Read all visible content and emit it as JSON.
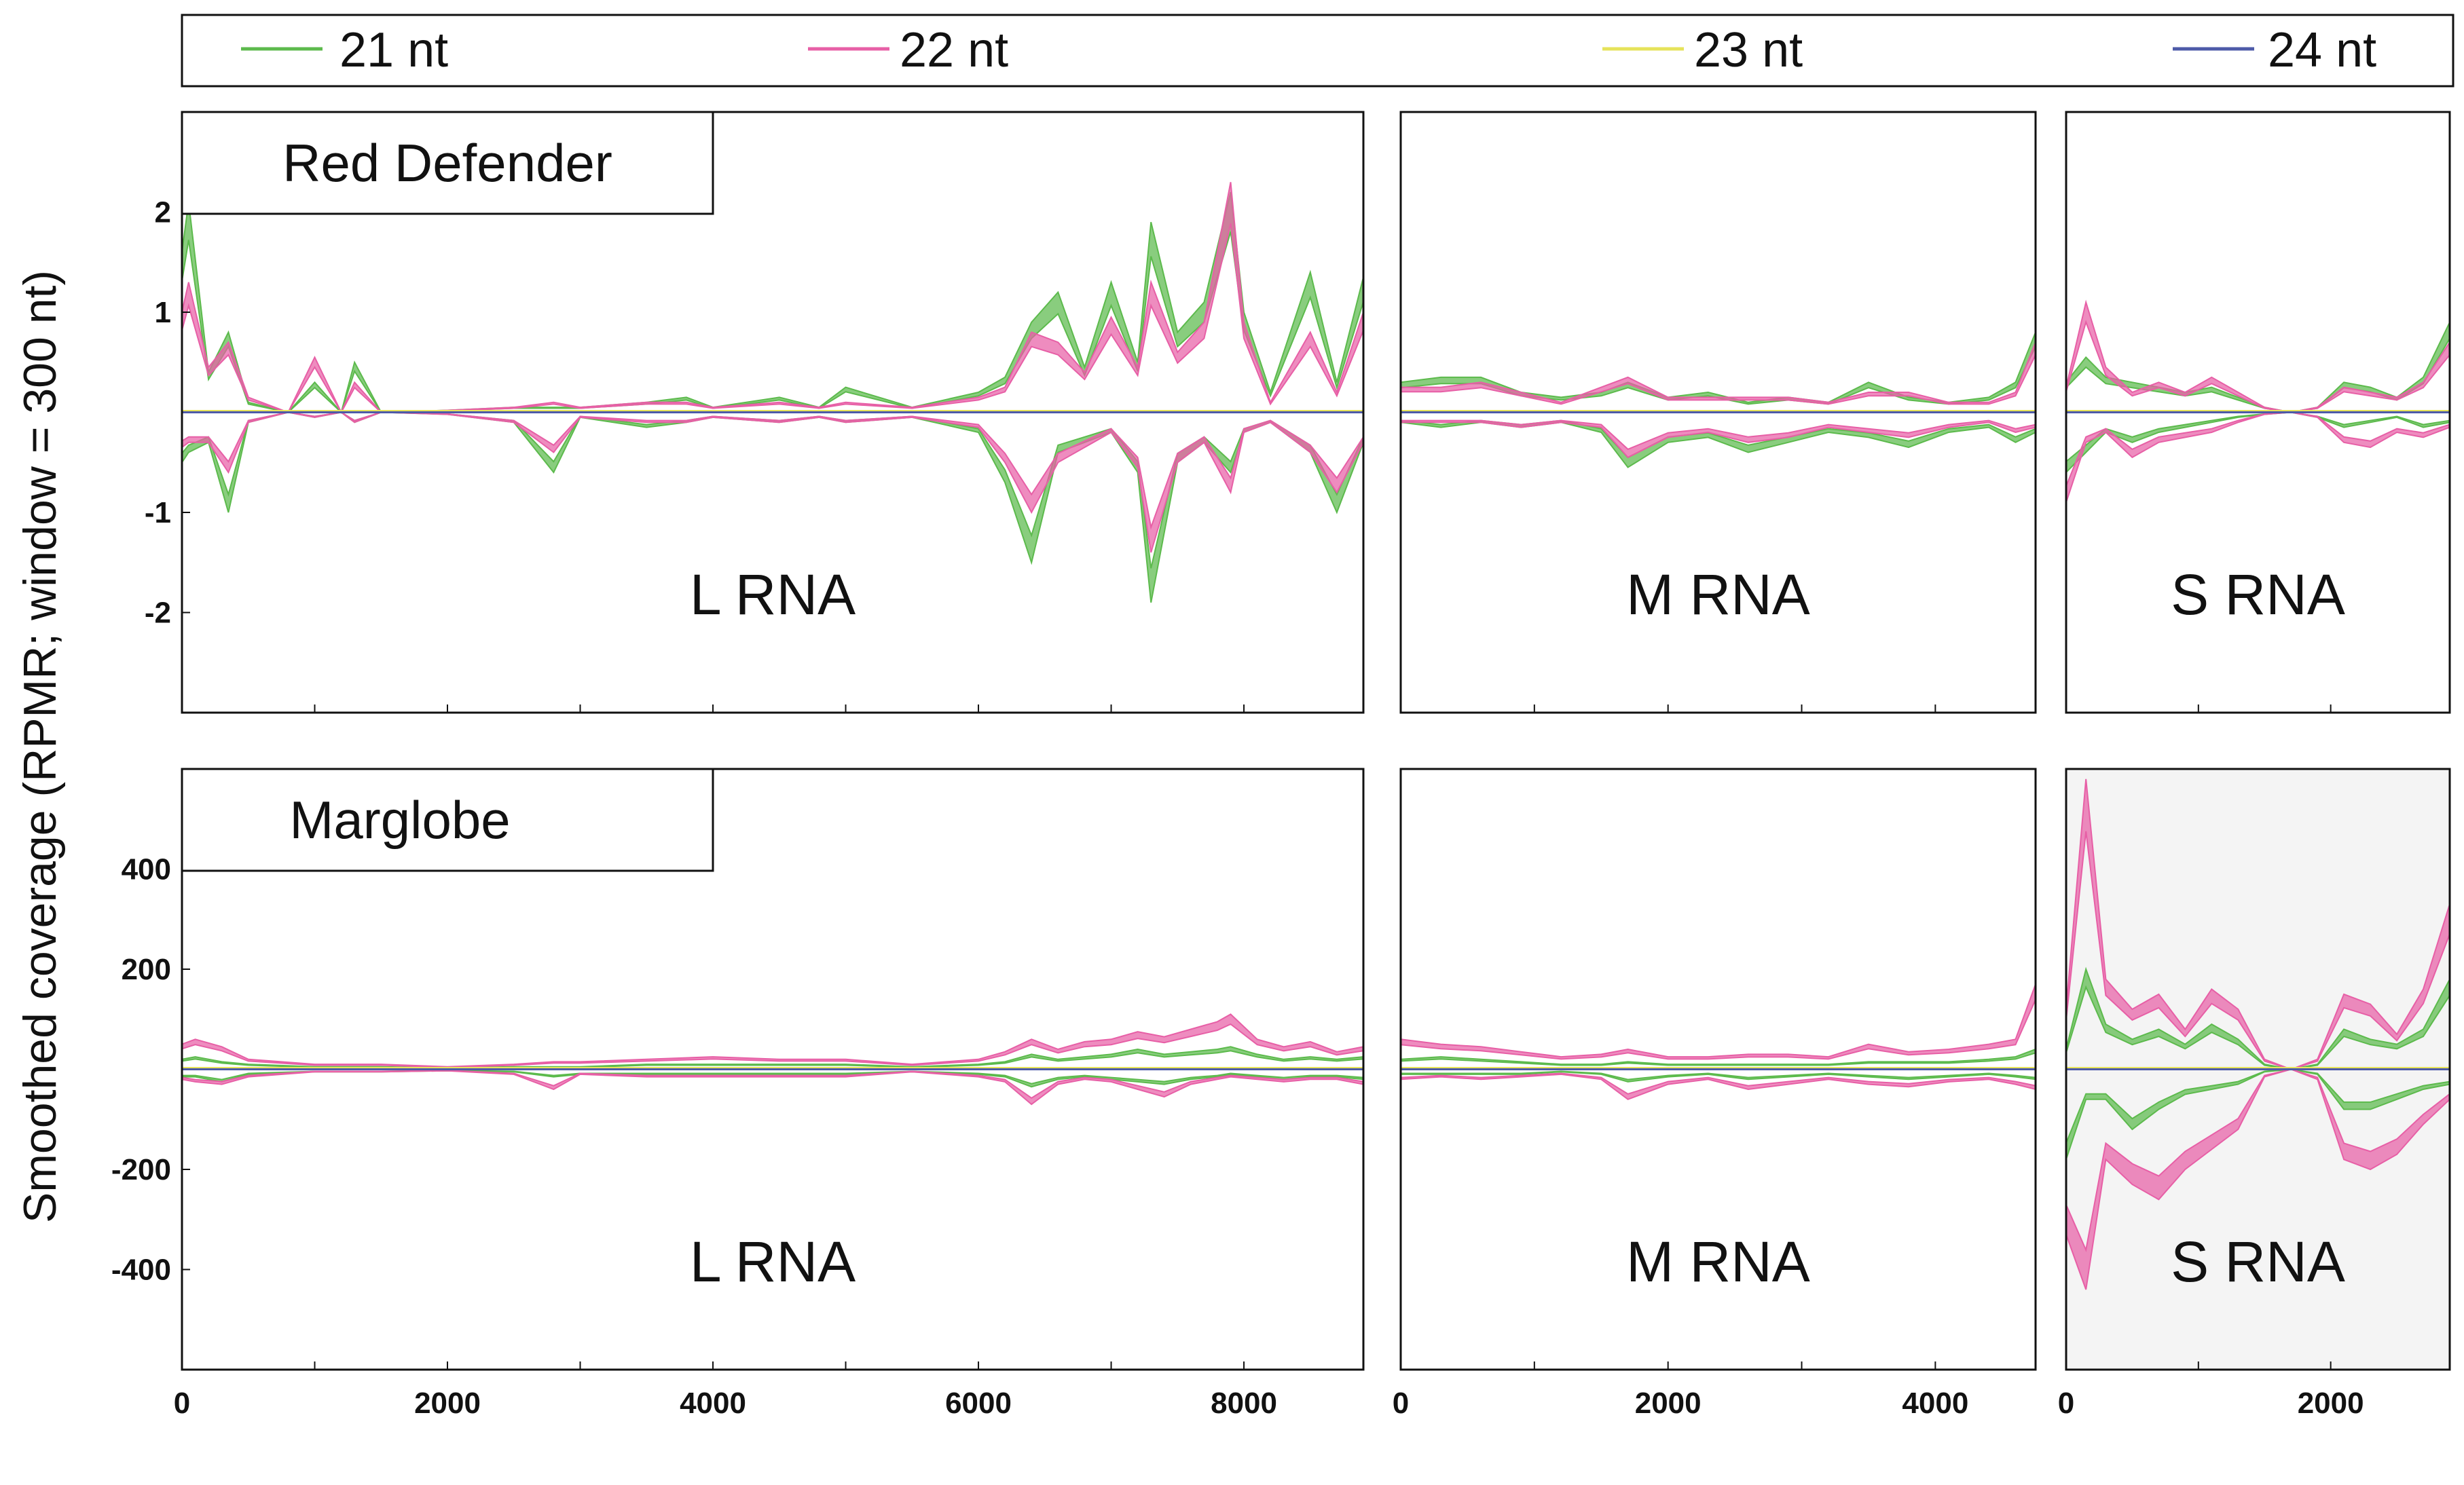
{
  "chart_data": {
    "type": "area",
    "description_hint": "small RNA coverage per segment",
    "ylabel": "Smoothed coverage (RPMR; window = 300 nt)",
    "legend": [
      {
        "name": "21 nt",
        "color": "#5cba4c"
      },
      {
        "name": "22 nt",
        "color": "#e75fa6"
      },
      {
        "name": "23 nt",
        "color": "#e6e35a"
      },
      {
        "name": "24 nt",
        "color": "#4d5aa8"
      }
    ],
    "legend_placement": "top",
    "grid": false,
    "rows": [
      {
        "label": "Red Defender",
        "ylim": [
          -3,
          3
        ],
        "yticks": [
          -2,
          -1,
          1,
          2
        ],
        "panels": [
          {
            "segment": "L RNA",
            "xlim": [
              0,
              8900
            ],
            "xticks": [
              0,
              2000,
              4000,
              6000,
              8000
            ],
            "x": [
              0,
              50,
              200,
              350,
              500,
              800,
              1000,
              1200,
              1300,
              1500,
              2000,
              2500,
              2800,
              3000,
              3500,
              3800,
              4000,
              4500,
              4800,
              5000,
              5500,
              6000,
              6200,
              6400,
              6600,
              6800,
              7000,
              7200,
              7300,
              7500,
              7700,
              7900,
              8000,
              8200,
              8500,
              8700,
              8900
            ],
            "series": [
              {
                "name": "21 nt",
                "plus": [
                  1.6,
                  2.1,
                  0.4,
                  0.8,
                  0.1,
                  0.0,
                  0.3,
                  0.0,
                  0.5,
                  0.0,
                  0.02,
                  0.05,
                  0.05,
                  0.05,
                  0.1,
                  0.15,
                  0.05,
                  0.15,
                  0.05,
                  0.25,
                  0.05,
                  0.2,
                  0.35,
                  0.9,
                  1.2,
                  0.45,
                  1.3,
                  0.5,
                  1.9,
                  0.8,
                  1.1,
                  2.2,
                  1.0,
                  0.2,
                  1.4,
                  0.3,
                  1.35
                ],
                "minus": [
                  -0.5,
                  -0.4,
                  -0.3,
                  -1.0,
                  -0.1,
                  0.0,
                  -0.05,
                  0.0,
                  -0.1,
                  0.0,
                  -0.02,
                  -0.1,
                  -0.6,
                  -0.05,
                  -0.15,
                  -0.1,
                  -0.05,
                  -0.1,
                  -0.05,
                  -0.1,
                  -0.05,
                  -0.2,
                  -0.7,
                  -1.5,
                  -0.4,
                  -0.3,
                  -0.2,
                  -0.6,
                  -1.9,
                  -0.5,
                  -0.3,
                  -0.6,
                  -0.2,
                  -0.1,
                  -0.4,
                  -1.0,
                  -0.3
                ]
              },
              {
                "name": "22 nt",
                "plus": [
                  1.0,
                  1.3,
                  0.45,
                  0.7,
                  0.15,
                  0.0,
                  0.55,
                  0.0,
                  0.3,
                  0.0,
                  0.02,
                  0.05,
                  0.1,
                  0.05,
                  0.1,
                  0.1,
                  0.05,
                  0.1,
                  0.05,
                  0.1,
                  0.05,
                  0.15,
                  0.25,
                  0.8,
                  0.7,
                  0.4,
                  0.95,
                  0.45,
                  1.3,
                  0.6,
                  0.9,
                  2.3,
                  0.9,
                  0.1,
                  0.8,
                  0.2,
                  1.0
                ],
                "minus": [
                  -0.35,
                  -0.3,
                  -0.3,
                  -0.6,
                  -0.1,
                  0.0,
                  -0.05,
                  0.0,
                  -0.1,
                  0.0,
                  -0.02,
                  -0.1,
                  -0.4,
                  -0.05,
                  -0.1,
                  -0.1,
                  -0.05,
                  -0.1,
                  -0.05,
                  -0.1,
                  -0.05,
                  -0.15,
                  -0.5,
                  -1.0,
                  -0.5,
                  -0.35,
                  -0.2,
                  -0.55,
                  -1.4,
                  -0.5,
                  -0.3,
                  -0.8,
                  -0.2,
                  -0.1,
                  -0.4,
                  -0.8,
                  -0.3
                ]
              }
            ]
          },
          {
            "segment": "M RNA",
            "xlim": [
              0,
              4750
            ],
            "xticks": [
              0,
              2000,
              4000
            ],
            "x": [
              0,
              300,
              600,
              900,
              1200,
              1500,
              1700,
              2000,
              2300,
              2600,
              2900,
              3200,
              3500,
              3800,
              4100,
              4400,
              4600,
              4750
            ],
            "series": [
              {
                "name": "21 nt",
                "plus": [
                  0.3,
                  0.35,
                  0.35,
                  0.2,
                  0.15,
                  0.2,
                  0.3,
                  0.15,
                  0.2,
                  0.1,
                  0.15,
                  0.1,
                  0.3,
                  0.15,
                  0.1,
                  0.15,
                  0.3,
                  0.8
                ],
                "minus": [
                  -0.1,
                  -0.15,
                  -0.1,
                  -0.15,
                  -0.1,
                  -0.2,
                  -0.55,
                  -0.3,
                  -0.25,
                  -0.4,
                  -0.3,
                  -0.2,
                  -0.25,
                  -0.35,
                  -0.2,
                  -0.15,
                  -0.3,
                  -0.2
                ]
              },
              {
                "name": "22 nt",
                "plus": [
                  0.25,
                  0.25,
                  0.3,
                  0.2,
                  0.1,
                  0.25,
                  0.35,
                  0.15,
                  0.15,
                  0.15,
                  0.15,
                  0.1,
                  0.2,
                  0.2,
                  0.1,
                  0.1,
                  0.2,
                  0.7
                ],
                "minus": [
                  -0.1,
                  -0.1,
                  -0.1,
                  -0.15,
                  -0.1,
                  -0.15,
                  -0.45,
                  -0.25,
                  -0.2,
                  -0.3,
                  -0.25,
                  -0.15,
                  -0.2,
                  -0.25,
                  -0.15,
                  -0.1,
                  -0.2,
                  -0.15
                ]
              }
            ]
          },
          {
            "segment": "S RNA",
            "xlim": [
              0,
              2900
            ],
            "xticks": [
              0,
              2000
            ],
            "x": [
              0,
              150,
              300,
              500,
              700,
              900,
              1100,
              1300,
              1500,
              1700,
              1900,
              2100,
              2300,
              2500,
              2700,
              2900
            ],
            "series": [
              {
                "name": "21 nt",
                "plus": [
                  0.3,
                  0.55,
                  0.35,
                  0.3,
                  0.25,
                  0.2,
                  0.25,
                  0.15,
                  0.05,
                  0.0,
                  0.05,
                  0.3,
                  0.25,
                  0.15,
                  0.35,
                  0.9
                ],
                "minus": [
                  -0.6,
                  -0.4,
                  -0.2,
                  -0.3,
                  -0.2,
                  -0.15,
                  -0.1,
                  -0.05,
                  -0.02,
                  0.0,
                  -0.05,
                  -0.15,
                  -0.1,
                  -0.05,
                  -0.15,
                  -0.1
                ]
              },
              {
                "name": "22 nt",
                "plus": [
                  0.25,
                  1.1,
                  0.45,
                  0.2,
                  0.3,
                  0.2,
                  0.35,
                  0.2,
                  0.05,
                  0.0,
                  0.05,
                  0.25,
                  0.2,
                  0.15,
                  0.3,
                  0.7
                ],
                "minus": [
                  -0.9,
                  -0.3,
                  -0.2,
                  -0.45,
                  -0.3,
                  -0.25,
                  -0.2,
                  -0.1,
                  -0.02,
                  0.0,
                  -0.05,
                  -0.3,
                  -0.35,
                  -0.2,
                  -0.25,
                  -0.15
                ]
              }
            ]
          }
        ]
      },
      {
        "label": "Marglobe",
        "ylim": [
          -600,
          600
        ],
        "yticks": [
          -400,
          -200,
          200,
          400
        ],
        "panels": [
          {
            "segment": "L RNA",
            "xlim": [
              0,
              8900
            ],
            "xticks": [
              0,
              2000,
              4000,
              6000,
              8000
            ],
            "x": [
              0,
              100,
              300,
              500,
              1000,
              1500,
              2000,
              2500,
              2800,
              3000,
              3500,
              4000,
              4500,
              5000,
              5500,
              6000,
              6200,
              6400,
              6600,
              6800,
              7000,
              7200,
              7400,
              7600,
              7800,
              7900,
              8100,
              8300,
              8500,
              8700,
              8900
            ],
            "series": [
              {
                "name": "21 nt",
                "plus": [
                  20,
                  25,
                  15,
                  10,
                  5,
                  5,
                  3,
                  5,
                  5,
                  5,
                  10,
                  10,
                  10,
                  10,
                  5,
                  10,
                  15,
                  30,
                  20,
                  25,
                  30,
                  40,
                  30,
                  35,
                  40,
                  45,
                  30,
                  20,
                  25,
                  20,
                  25
                ],
                "minus": [
                  -15,
                  -15,
                  -25,
                  -10,
                  -5,
                  -5,
                  -3,
                  -5,
                  -15,
                  -10,
                  -10,
                  -10,
                  -10,
                  -10,
                  -5,
                  -10,
                  -15,
                  -35,
                  -20,
                  -15,
                  -20,
                  -25,
                  -30,
                  -20,
                  -15,
                  -10,
                  -15,
                  -20,
                  -15,
                  -15,
                  -20
                ]
              },
              {
                "name": "22 nt",
                "plus": [
                  50,
                  60,
                  45,
                  20,
                  10,
                  10,
                  5,
                  10,
                  15,
                  15,
                  20,
                  25,
                  20,
                  20,
                  10,
                  20,
                  35,
                  60,
                  40,
                  55,
                  60,
                  75,
                  65,
                  80,
                  95,
                  110,
                  60,
                  45,
                  55,
                  35,
                  45
                ],
                "minus": [
                  -20,
                  -25,
                  -30,
                  -15,
                  -5,
                  -5,
                  -3,
                  -10,
                  -40,
                  -10,
                  -15,
                  -15,
                  -15,
                  -15,
                  -5,
                  -15,
                  -25,
                  -70,
                  -30,
                  -20,
                  -25,
                  -40,
                  -55,
                  -30,
                  -20,
                  -15,
                  -20,
                  -25,
                  -20,
                  -20,
                  -30
                ]
              }
            ]
          },
          {
            "segment": "M RNA",
            "xlim": [
              0,
              4750
            ],
            "xticks": [
              0,
              2000,
              4000
            ],
            "x": [
              0,
              300,
              600,
              900,
              1200,
              1500,
              1700,
              2000,
              2300,
              2600,
              2900,
              3200,
              3500,
              3800,
              4100,
              4400,
              4600,
              4750
            ],
            "series": [
              {
                "name": "21 nt",
                "plus": [
                  20,
                  25,
                  20,
                  15,
                  10,
                  10,
                  15,
                  10,
                  10,
                  10,
                  10,
                  10,
                  15,
                  15,
                  15,
                  20,
                  25,
                  40
                ],
                "minus": [
                  -10,
                  -10,
                  -10,
                  -10,
                  -5,
                  -10,
                  -25,
                  -15,
                  -10,
                  -20,
                  -15,
                  -10,
                  -15,
                  -20,
                  -15,
                  -10,
                  -15,
                  -20
                ]
              },
              {
                "name": "22 nt",
                "plus": [
                  60,
                  50,
                  45,
                  35,
                  25,
                  30,
                  40,
                  25,
                  25,
                  30,
                  30,
                  25,
                  50,
                  35,
                  40,
                  50,
                  60,
                  170
                ],
                "minus": [
                  -20,
                  -15,
                  -20,
                  -15,
                  -10,
                  -20,
                  -60,
                  -30,
                  -20,
                  -40,
                  -30,
                  -20,
                  -30,
                  -35,
                  -25,
                  -20,
                  -30,
                  -40
                ]
              }
            ]
          },
          {
            "segment": "S RNA",
            "xlim": [
              0,
              2900
            ],
            "xticks": [
              0,
              2000
            ],
            "x": [
              0,
              150,
              300,
              500,
              700,
              900,
              1100,
              1300,
              1500,
              1700,
              1900,
              2100,
              2300,
              2500,
              2700,
              2900
            ],
            "series": [
              {
                "name": "21 nt",
                "plus": [
                  40,
                  200,
                  90,
                  60,
                  80,
                  50,
                  90,
                  60,
                  10,
                  0,
                  10,
                  80,
                  60,
                  50,
                  80,
                  180
                ],
                "minus": [
                  -180,
                  -60,
                  -60,
                  -120,
                  -80,
                  -50,
                  -40,
                  -30,
                  -5,
                  0,
                  -10,
                  -80,
                  -80,
                  -60,
                  -40,
                  -30
                ]
              },
              {
                "name": "22 nt",
                "plus": [
                  120,
                  580,
                  180,
                  120,
                  150,
                  80,
                  160,
                  120,
                  20,
                  0,
                  20,
                  150,
                  130,
                  70,
                  160,
                  330
                ],
                "minus": [
                  -330,
                  -440,
                  -180,
                  -230,
                  -260,
                  -200,
                  -160,
                  -120,
                  -15,
                  0,
                  -20,
                  -180,
                  -200,
                  -170,
                  -110,
                  -60
                ]
              }
            ]
          }
        ]
      }
    ]
  }
}
